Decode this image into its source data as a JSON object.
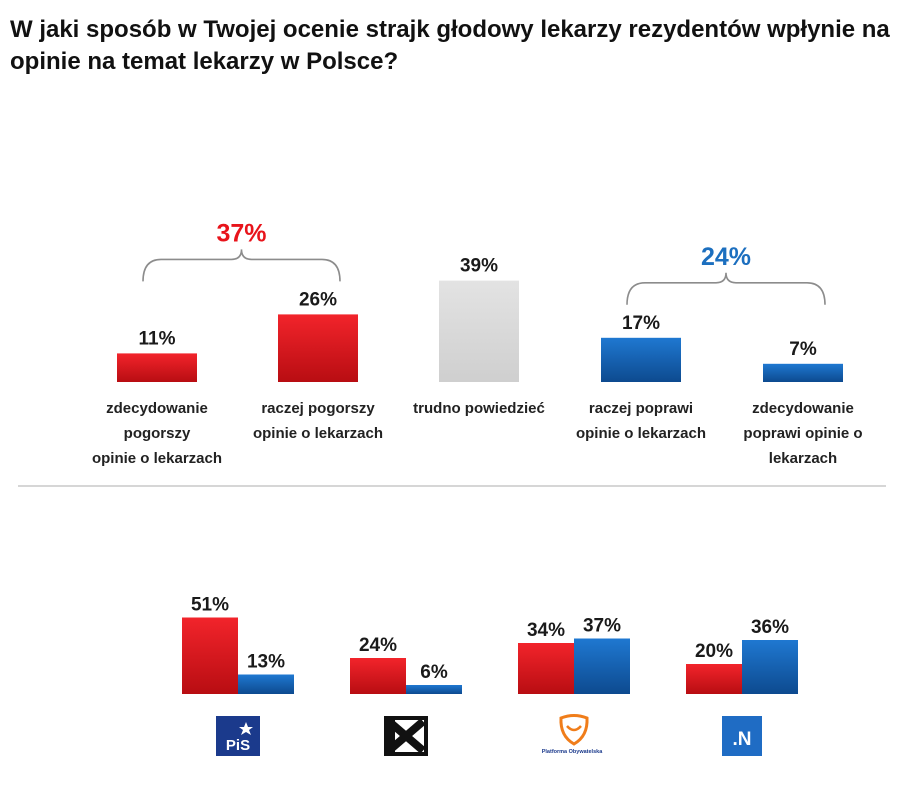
{
  "title": "W jaki sposób w Twojej ocenie strajk głodowy lekarzy rezydentów wpłynie na opinie na temat lekarzy w Polsce?",
  "colors": {
    "negative": "#e8141b",
    "neutral": "#d9d9d9",
    "positive": "#1565b8",
    "negative_label": "#e8141b",
    "positive_label": "#1c6fbf"
  },
  "chart_data": [
    {
      "type": "bar",
      "categories": [
        [
          "zdecydowanie",
          "pogorszy",
          "opinie o lekarzach"
        ],
        [
          "raczej pogorszy",
          "opinie o lekarzach"
        ],
        [
          "trudno powiedzieć"
        ],
        [
          "raczej poprawi",
          "opinie o lekarzach"
        ],
        [
          "zdecydowanie",
          "poprawi opinie o",
          "lekarzach"
        ]
      ],
      "values": [
        11,
        26,
        39,
        17,
        7
      ],
      "value_labels": [
        "11%",
        "26%",
        "39%",
        "17%",
        "7%"
      ],
      "bar_colors": [
        "negative",
        "negative",
        "neutral",
        "positive",
        "positive"
      ],
      "groups": [
        {
          "label": "37%",
          "members": [
            0,
            1
          ],
          "color": "negative_label"
        },
        {
          "label": "24%",
          "members": [
            3,
            4
          ],
          "color": "positive_label"
        }
      ],
      "grid": false,
      "legend": "none"
    },
    {
      "type": "bar",
      "categories": [
        "PiS",
        "Kukiz'15",
        "Platforma Obywatelska",
        ".N"
      ],
      "series": [
        {
          "values": [
            51,
            24,
            34,
            20
          ],
          "labels": [
            "51%",
            "24%",
            "34%",
            "20%"
          ],
          "color": "negative"
        },
        {
          "values": [
            13,
            6,
            37,
            36
          ],
          "labels": [
            "13%",
            "6%",
            "37%",
            "36%"
          ],
          "color": "positive"
        }
      ],
      "logos": [
        {
          "icon": "pis-logo",
          "text": "PiS"
        },
        {
          "icon": "kukiz-logo",
          "text": ""
        },
        {
          "icon": "po-logo",
          "text": "Platforma Obywatelska"
        },
        {
          "icon": "nowoczesna-logo",
          "text": ".N"
        }
      ],
      "grid": false,
      "legend": "none"
    }
  ]
}
